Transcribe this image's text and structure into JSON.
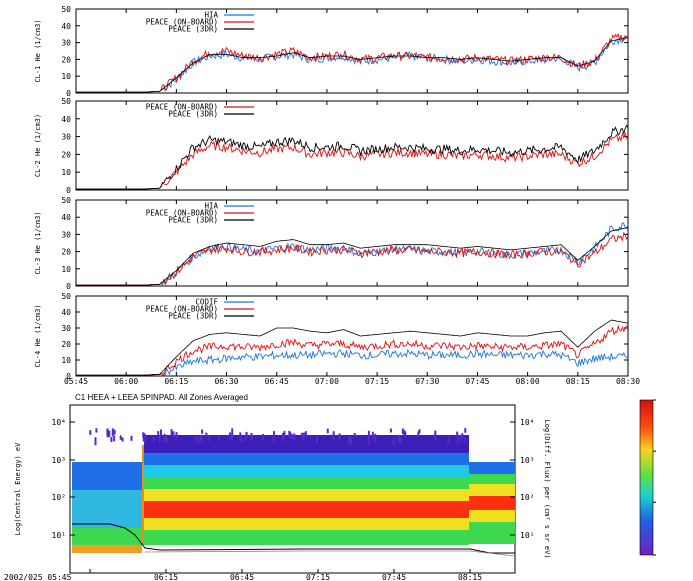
{
  "chart_data": [
    {
      "type": "line",
      "ylabel": "CL-1 He (1/cm3)",
      "ylim": [
        0,
        50
      ],
      "yticks": [
        0,
        10,
        20,
        30,
        40,
        50
      ],
      "legend": [
        "HIA",
        "PEACE (ON-BOARD)",
        "PEACE (3DR)"
      ],
      "series": [
        {
          "name": "HIA",
          "color": "#1f77d4",
          "x": [
            0,
            10,
            15,
            20,
            25,
            30,
            35,
            40,
            45,
            50,
            55,
            60,
            65,
            70,
            75,
            80,
            85,
            90,
            95,
            100,
            105,
            110,
            115,
            120,
            125,
            130,
            135,
            140,
            145,
            150,
            155,
            160,
            165
          ],
          "values": [
            0.5,
            0.5,
            0.5,
            0.5,
            1,
            8,
            18,
            22,
            23,
            21,
            20,
            22,
            23,
            20,
            21,
            22,
            19,
            20,
            21,
            22,
            21,
            20,
            19,
            20,
            19,
            18,
            19,
            20,
            21,
            15,
            18,
            31,
            33
          ]
        },
        {
          "name": "PEACE (ON-BOARD)",
          "color": "#e01010",
          "x": [
            0,
            10,
            15,
            20,
            25,
            30,
            35,
            40,
            45,
            50,
            55,
            60,
            65,
            70,
            75,
            80,
            85,
            90,
            95,
            100,
            105,
            110,
            115,
            120,
            125,
            130,
            135,
            140,
            145,
            150,
            155,
            160,
            165
          ],
          "values": [
            0.5,
            0.5,
            0.5,
            0.5,
            1,
            9,
            19,
            24,
            25,
            22,
            21,
            23,
            25,
            21,
            22,
            23,
            20,
            21,
            22,
            22,
            21,
            21,
            20,
            21,
            20,
            19,
            20,
            21,
            21,
            16,
            19,
            32,
            34
          ]
        },
        {
          "name": "PEACE (3DR)",
          "color": "#000000",
          "x": [
            0,
            10,
            15,
            20,
            25,
            30,
            35,
            40,
            45,
            50,
            55,
            60,
            65,
            70,
            75,
            80,
            85,
            90,
            95,
            100,
            105,
            110,
            115,
            120,
            125,
            130,
            135,
            140,
            145,
            150,
            155,
            160,
            165
          ],
          "values": [
            0.5,
            0.5,
            0.5,
            0.5,
            1,
            9,
            18,
            23,
            23,
            21,
            21,
            22,
            24,
            21,
            22,
            22,
            20,
            21,
            22,
            22,
            21,
            21,
            20,
            21,
            20,
            19,
            20,
            21,
            21,
            16,
            19,
            31,
            33
          ]
        }
      ]
    },
    {
      "type": "line",
      "ylabel": "CL-2 He (1/cm3)",
      "ylim": [
        0,
        50
      ],
      "yticks": [
        0,
        10,
        20,
        30,
        40,
        50
      ],
      "legend": [
        "PEACE (ON-BOARD)",
        "PEACE (3DR)"
      ],
      "series": [
        {
          "name": "PEACE (ON-BOARD)",
          "color": "#e01010",
          "x": [
            0,
            10,
            15,
            20,
            25,
            30,
            35,
            40,
            45,
            50,
            55,
            60,
            65,
            70,
            75,
            80,
            85,
            90,
            95,
            100,
            105,
            110,
            115,
            120,
            125,
            130,
            135,
            140,
            145,
            150,
            155,
            160,
            165
          ],
          "values": [
            0.5,
            0.5,
            0.5,
            0.5,
            1,
            10,
            20,
            25,
            24,
            22,
            21,
            23,
            24,
            20,
            21,
            21,
            19,
            20,
            21,
            21,
            20,
            20,
            19,
            20,
            19,
            18,
            19,
            20,
            20,
            15,
            19,
            28,
            30
          ]
        },
        {
          "name": "PEACE (3DR)",
          "color": "#000000",
          "x": [
            0,
            10,
            15,
            20,
            25,
            30,
            35,
            40,
            45,
            50,
            55,
            60,
            65,
            70,
            75,
            80,
            85,
            90,
            95,
            100,
            105,
            110,
            115,
            120,
            125,
            130,
            135,
            140,
            145,
            150,
            155,
            160,
            165
          ],
          "values": [
            0.5,
            0.5,
            0.5,
            0.5,
            1,
            12,
            24,
            28,
            27,
            25,
            24,
            27,
            28,
            24,
            24,
            25,
            22,
            23,
            24,
            24,
            23,
            23,
            22,
            23,
            22,
            21,
            22,
            23,
            24,
            17,
            22,
            32,
            35
          ]
        }
      ]
    },
    {
      "type": "line",
      "ylabel": "CL-3 He (1/cm3)",
      "ylim": [
        0,
        50
      ],
      "yticks": [
        0,
        10,
        20,
        30,
        40,
        50
      ],
      "legend": [
        "HIA",
        "PEACE (ON-BOARD)",
        "PEACE (3DR)"
      ],
      "series": [
        {
          "name": "HIA",
          "color": "#1f77d4",
          "x": [
            0,
            10,
            15,
            20,
            25,
            30,
            35,
            40,
            45,
            50,
            55,
            60,
            65,
            70,
            75,
            80,
            85,
            90,
            95,
            100,
            105,
            110,
            115,
            120,
            125,
            130,
            135,
            140,
            145,
            150,
            155,
            160,
            165
          ],
          "values": [
            0.5,
            0.5,
            0.5,
            0.5,
            1,
            8,
            17,
            22,
            23,
            21,
            20,
            22,
            23,
            21,
            22,
            22,
            19,
            20,
            21,
            21,
            20,
            20,
            19,
            20,
            19,
            18,
            19,
            20,
            21,
            14,
            22,
            33,
            36
          ]
        },
        {
          "name": "PEACE (ON-BOARD)",
          "color": "#e01010",
          "x": [
            0,
            10,
            15,
            20,
            25,
            30,
            35,
            40,
            45,
            50,
            55,
            60,
            65,
            70,
            75,
            80,
            85,
            90,
            95,
            100,
            105,
            110,
            115,
            120,
            125,
            130,
            135,
            140,
            145,
            150,
            155,
            160,
            165
          ],
          "values": [
            0.5,
            0.5,
            0.5,
            0.5,
            1,
            8,
            17,
            21,
            22,
            20,
            20,
            21,
            22,
            20,
            21,
            21,
            19,
            20,
            21,
            21,
            20,
            20,
            19,
            20,
            19,
            18,
            19,
            20,
            20,
            13,
            19,
            27,
            29
          ]
        },
        {
          "name": "PEACE (3DR)",
          "color": "#000000",
          "x": [
            0,
            10,
            15,
            20,
            25,
            30,
            35,
            40,
            45,
            50,
            55,
            60,
            65,
            70,
            75,
            80,
            85,
            90,
            95,
            100,
            105,
            110,
            115,
            120,
            125,
            130,
            135,
            140,
            145,
            150,
            155,
            160,
            165
          ],
          "values": [
            0.5,
            0.5,
            0.5,
            0.5,
            1,
            9,
            19,
            23,
            25,
            24,
            23,
            26,
            27,
            24,
            24,
            25,
            22,
            23,
            24,
            24,
            24,
            23,
            22,
            23,
            22,
            21,
            22,
            23,
            24,
            15,
            23,
            32,
            34
          ]
        }
      ]
    },
    {
      "type": "line",
      "ylabel": "CL-4 He (1/cm3)",
      "ylim": [
        0,
        50
      ],
      "yticks": [
        0,
        10,
        20,
        30,
        40,
        50
      ],
      "legend": [
        "CODIF",
        "PEACE (ON-BOARD)",
        "PEACE (3DR)"
      ],
      "xticks": [
        "05:45",
        "06:00",
        "06:15",
        "06:30",
        "06:45",
        "07:00",
        "07:15",
        "07:30",
        "07:45",
        "08:00",
        "08:15",
        "08:30"
      ],
      "series": [
        {
          "name": "CODIF",
          "color": "#1f77d4",
          "x": [
            0,
            10,
            15,
            20,
            25,
            30,
            35,
            40,
            45,
            50,
            55,
            60,
            65,
            70,
            75,
            80,
            85,
            90,
            95,
            100,
            105,
            110,
            115,
            120,
            125,
            130,
            135,
            140,
            145,
            150,
            155,
            160,
            165
          ],
          "values": [
            0.5,
            0.5,
            0.5,
            0.5,
            1,
            5,
            9,
            10,
            11,
            12,
            12,
            13,
            13,
            13,
            14,
            14,
            13,
            13,
            14,
            14,
            13,
            13,
            13,
            14,
            13,
            13,
            13,
            14,
            13,
            8,
            11,
            12,
            12
          ]
        },
        {
          "name": "PEACE (ON-BOARD)",
          "color": "#e01010",
          "x": [
            0,
            10,
            15,
            20,
            25,
            30,
            35,
            40,
            45,
            50,
            55,
            60,
            65,
            70,
            75,
            80,
            85,
            90,
            95,
            100,
            105,
            110,
            115,
            120,
            125,
            130,
            135,
            140,
            145,
            150,
            155,
            160,
            165
          ],
          "values": [
            0.5,
            0.5,
            0.5,
            0.5,
            1,
            9,
            16,
            18,
            19,
            18,
            18,
            20,
            21,
            19,
            20,
            20,
            18,
            19,
            20,
            20,
            19,
            19,
            18,
            19,
            18,
            18,
            18,
            19,
            20,
            13,
            20,
            28,
            31
          ]
        },
        {
          "name": "PEACE (3DR)",
          "color": "#000000",
          "x": [
            0,
            10,
            15,
            20,
            25,
            30,
            35,
            40,
            45,
            50,
            55,
            60,
            65,
            70,
            75,
            80,
            85,
            90,
            95,
            100,
            105,
            110,
            115,
            120,
            125,
            130,
            135,
            140,
            145,
            150,
            155,
            160,
            165
          ],
          "values": [
            0.5,
            0.5,
            0.5,
            0.5,
            1,
            12,
            22,
            26,
            27,
            26,
            25,
            30,
            30,
            28,
            27,
            29,
            25,
            26,
            27,
            28,
            27,
            26,
            25,
            27,
            26,
            25,
            25,
            27,
            28,
            18,
            28,
            35,
            33
          ]
        }
      ]
    },
    {
      "type": "heatmap",
      "title": "C1 HEEA + LEEA SPINPAD. All Zones Averaged",
      "ylabel": "Log(Central Energy) eV",
      "yticks": [
        "10¹",
        "10²",
        "10³",
        "10⁴"
      ],
      "xticks": [
        "2002/025 05:45",
        "06:15",
        "06:45",
        "07:15",
        "07:45",
        "08:15"
      ],
      "colorbar_label": "Log(Diff. Flux) per (cm² s sr eV)",
      "right_ticks": [
        "10⁴",
        "10³",
        "10²",
        "10¹"
      ]
    }
  ]
}
